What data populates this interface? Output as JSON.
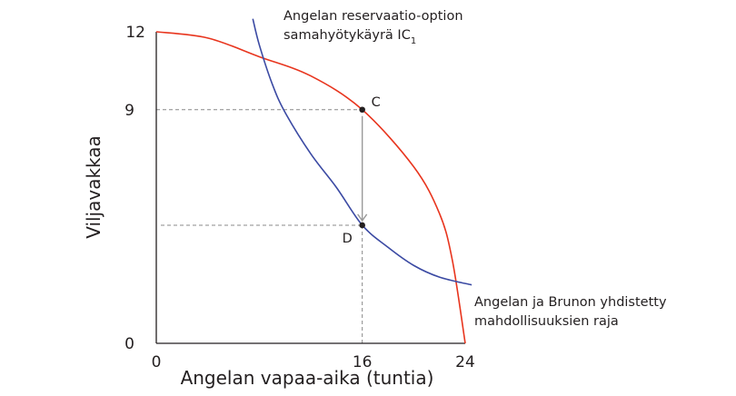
{
  "chart_data": {
    "type": "line",
    "xlabel": "Angelan vapaa-aika (tuntia)",
    "ylabel": "Viljavakkaa",
    "xlim": [
      0,
      24
    ],
    "ylim": [
      0,
      12
    ],
    "x_ticks": [
      "0",
      "16",
      "24"
    ],
    "y_ticks": [
      "0",
      "9",
      "12"
    ],
    "grid": false,
    "series": [
      {
        "name_lines": [
          "Angelan ja Brunon yhdistetty",
          "mahdollisuuksien raja"
        ],
        "color": "#e8351e",
        "x": [
          0,
          4,
          8,
          12,
          16,
          20,
          22,
          23,
          24
        ],
        "y": [
          12,
          11.76,
          11.04,
          10.3,
          9,
          6.8,
          5.0,
          3.2,
          0
        ]
      },
      {
        "name_lines": [
          "Angelan reservaatio-option",
          "samahyötykäyrä IC",
          "1"
        ],
        "color": "#3b4aa3",
        "x": [
          7.5,
          8,
          9,
          10,
          12,
          14,
          16,
          18,
          20,
          22,
          24.5
        ],
        "y": [
          12.5,
          11.5,
          10.0,
          8.9,
          7.3,
          6.0,
          4.55,
          3.7,
          3.0,
          2.55,
          2.25
        ]
      }
    ],
    "points": [
      {
        "label": "C",
        "x": 16,
        "y": 9
      },
      {
        "label": "D",
        "x": 16,
        "y": 4.55
      }
    ],
    "guides": {
      "c_level": 9,
      "d_level": 4.55,
      "vertical_x": 16
    },
    "colors": {
      "frontier": "#e8351e",
      "indifference": "#3b4aa3",
      "axis": "#231f20",
      "guide": "#888888",
      "arrow": "#9a9a9a"
    }
  }
}
